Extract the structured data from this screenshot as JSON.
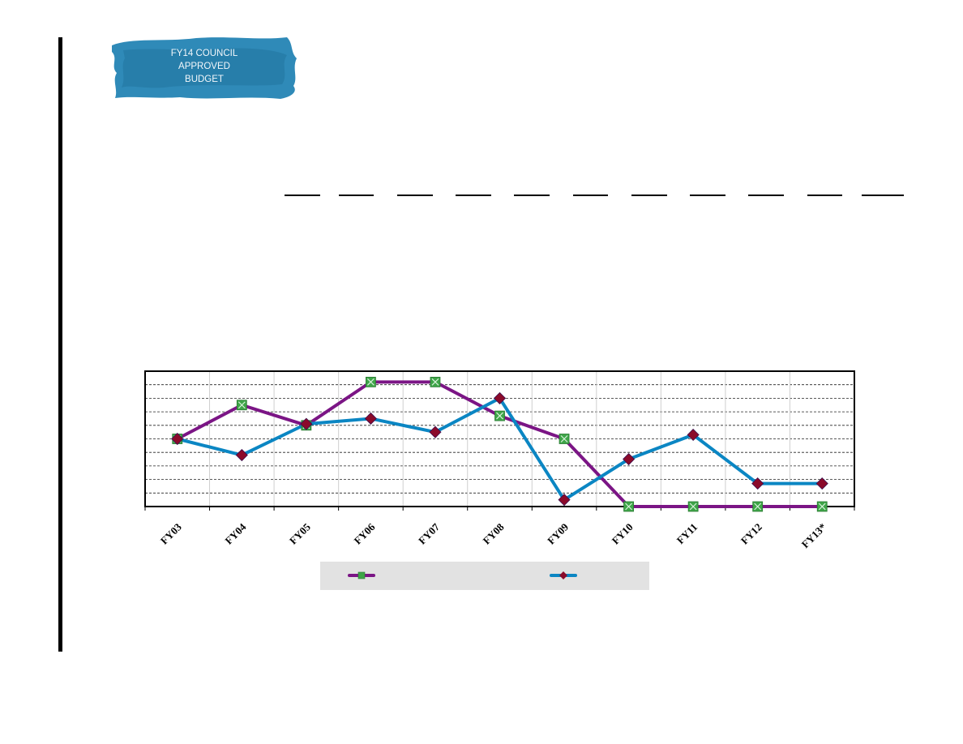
{
  "logo": {
    "lines": [
      "FY14 COUNCIL",
      "APPROVED",
      "BUDGET"
    ],
    "colors": {
      "paint": "#2f8ab8",
      "paint_dark": "#1f6f99",
      "text": "#f2f7fb"
    }
  },
  "chart_data": {
    "type": "line",
    "categories": [
      "FY03",
      "FY04",
      "FY05",
      "FY06",
      "FY07",
      "FY08",
      "FY09",
      "FY10",
      "FY11",
      "FY12",
      "FY13*"
    ],
    "ylim": [
      0,
      10
    ],
    "grid": true,
    "legend_position": "bottom",
    "series": [
      {
        "name": "",
        "color": "#7b1585",
        "marker": "square",
        "marker_color": "#3ea548",
        "values": [
          5.0,
          7.5,
          6.0,
          9.2,
          9.2,
          6.7,
          5.0,
          0.0,
          0.0,
          0.0,
          0.0
        ]
      },
      {
        "name": "",
        "color": "#0b86c3",
        "marker": "diamond",
        "marker_color": "#8b0a2a",
        "values": [
          5.0,
          3.8,
          6.1,
          6.5,
          5.5,
          8.0,
          0.5,
          3.5,
          5.3,
          1.7,
          1.7
        ]
      }
    ]
  }
}
